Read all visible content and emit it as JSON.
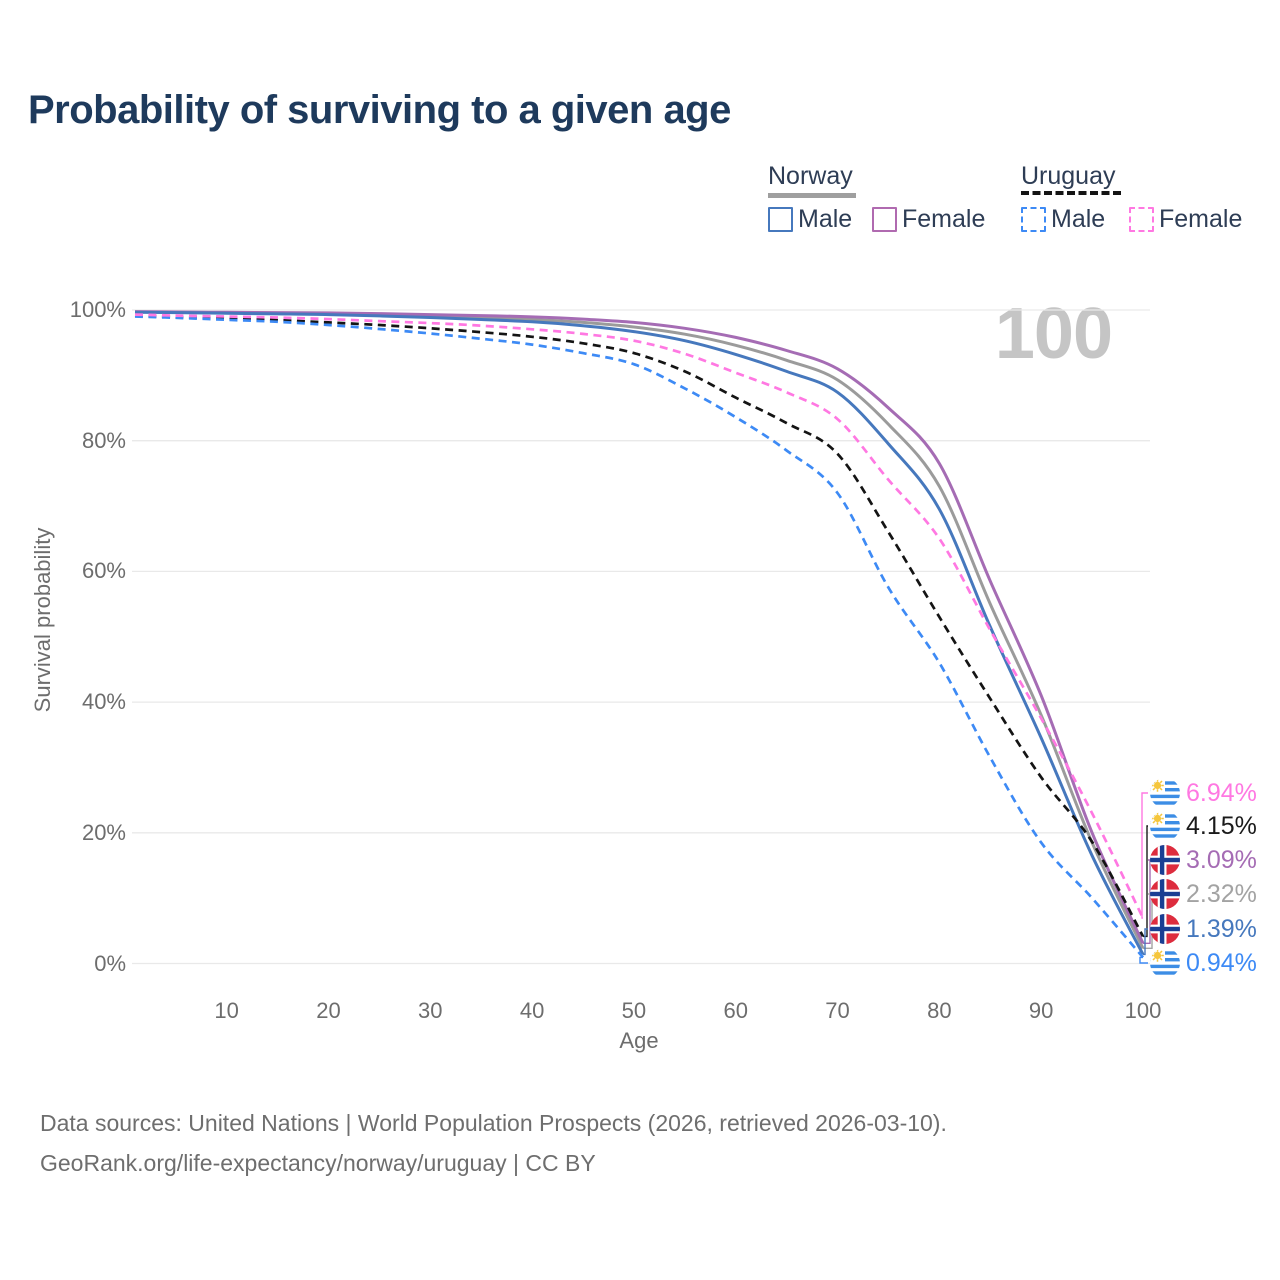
{
  "page": {
    "title": "Probability of surviving to a given age",
    "watermark": "100"
  },
  "legend": {
    "norway": {
      "label": "Norway",
      "male": "Male",
      "female": "Female"
    },
    "uruguay": {
      "label": "Uruguay",
      "male": "Male",
      "female": "Female"
    }
  },
  "axes": {
    "y_title": "Survival probability",
    "x_title": "Age",
    "y_ticks": [
      "100%",
      "80%",
      "60%",
      "40%",
      "20%",
      "0%"
    ],
    "x_ticks": [
      "10",
      "20",
      "30",
      "40",
      "50",
      "60",
      "70",
      "80",
      "90",
      "100"
    ]
  },
  "footer": {
    "line1": "Data sources: United Nations | World Population Prospects (2026, retrieved 2026-03-10).",
    "line2": "GeoRank.org/life-expectancy/norway/uruguay | CC BY"
  },
  "colors": {
    "title_text": "#1e3a5c",
    "axis_text": "#6d6d6d",
    "gridline": "#e9e9e9",
    "watermark": "#c5c5c5",
    "norway_male": "#4678bd",
    "norway_female": "#a56cb4",
    "norway_total": "#9b9b9b",
    "uruguay_male": "#3d8af5",
    "uruguay_female": "#ff78e2",
    "uruguay_total": "#141414",
    "norway_flag_red": "#dd2c3e",
    "norway_flag_blue": "#1a3e93",
    "uruguay_flag_blue": "#3c8de5",
    "uruguay_flag_sun": "#f5c63c"
  },
  "chart_data": {
    "type": "line",
    "title": "Probability of surviving to a given age",
    "xlabel": "Age",
    "ylabel": "Survival probability",
    "xlim": [
      1,
      100
    ],
    "ylim": [
      0,
      100
    ],
    "grid": "horizontal",
    "legend_position": "top-right",
    "ages": [
      1,
      5,
      10,
      15,
      20,
      25,
      30,
      35,
      40,
      45,
      50,
      55,
      60,
      65,
      70,
      75,
      80,
      85,
      90,
      95,
      100
    ],
    "series": [
      {
        "id": "norway-total",
        "name": "Norway",
        "country": "norway",
        "sex": "both",
        "color": "#9b9b9b",
        "dashed": false,
        "end_label": "2.32%",
        "label_color": "#a3a3a3",
        "values": [
          99.7,
          99.65,
          99.6,
          99.5,
          99.4,
          99.25,
          99.05,
          98.85,
          98.55,
          98.1,
          97.4,
          96.3,
          94.6,
          92.3,
          89.3,
          82.5,
          73.0,
          55.0,
          38.0,
          18.5,
          2.32
        ]
      },
      {
        "id": "norway-female",
        "name": "Norway Female",
        "country": "norway",
        "sex": "female",
        "color": "#a56cb4",
        "dashed": false,
        "end_label": "3.09%",
        "label_color": "#a56cb4",
        "values": [
          99.75,
          99.7,
          99.65,
          99.6,
          99.55,
          99.45,
          99.3,
          99.15,
          98.95,
          98.6,
          98.1,
          97.2,
          95.8,
          93.8,
          91.0,
          85.0,
          76.5,
          58.5,
          41.0,
          20.0,
          3.09
        ]
      },
      {
        "id": "norway-male",
        "name": "Norway Male",
        "country": "norway",
        "sex": "male",
        "color": "#4678bd",
        "dashed": false,
        "end_label": "1.39%",
        "label_color": "#4678bd",
        "values": [
          99.65,
          99.6,
          99.5,
          99.4,
          99.3,
          99.1,
          98.85,
          98.55,
          98.2,
          97.6,
          96.7,
          95.3,
          93.2,
          90.6,
          87.4,
          79.5,
          69.5,
          51.5,
          34.5,
          16.5,
          1.39
        ]
      },
      {
        "id": "uruguay-total",
        "name": "Uruguay",
        "country": "uruguay",
        "sex": "both",
        "color": "#141414",
        "dashed": true,
        "end_label": "4.15%",
        "label_color": "#1a1a1a",
        "values": [
          99.15,
          98.95,
          98.75,
          98.45,
          98.1,
          97.7,
          97.2,
          96.6,
          95.9,
          94.9,
          93.4,
          90.6,
          86.6,
          82.7,
          78.0,
          66.0,
          53.0,
          40.5,
          28.5,
          18.6,
          4.15
        ]
      },
      {
        "id": "uruguay-male",
        "name": "Uruguay Male",
        "country": "uruguay",
        "sex": "male",
        "color": "#3d8af5",
        "dashed": true,
        "end_label": "0.94%",
        "label_color": "#3d8af5",
        "values": [
          99.0,
          98.8,
          98.5,
          98.2,
          97.7,
          97.1,
          96.4,
          95.6,
          94.7,
          93.4,
          91.7,
          88.0,
          83.6,
          78.5,
          72.0,
          57.5,
          46.0,
          31.5,
          18.5,
          10.0,
          0.94
        ]
      },
      {
        "id": "uruguay-female",
        "name": "Uruguay Female",
        "country": "uruguay",
        "sex": "female",
        "color": "#ff78e2",
        "dashed": true,
        "end_label": "6.94%",
        "label_color": "#ff78e2",
        "values": [
          99.3,
          99.15,
          99.0,
          98.85,
          98.6,
          98.3,
          98.0,
          97.6,
          97.05,
          96.35,
          95.3,
          93.3,
          90.4,
          87.4,
          83.3,
          74.0,
          65.0,
          51.0,
          37.5,
          23.0,
          6.94
        ]
      }
    ]
  }
}
